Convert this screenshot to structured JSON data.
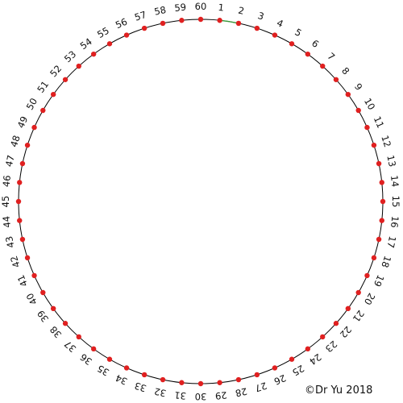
{
  "diagram": {
    "labels": [
      "60",
      "1",
      "2",
      "3",
      "4",
      "5",
      "6",
      "7",
      "8",
      "9",
      "10",
      "11",
      "12",
      "13",
      "14",
      "15",
      "16",
      "17",
      "18",
      "19",
      "20",
      "21",
      "22",
      "23",
      "24",
      "25",
      "26",
      "27",
      "28",
      "29",
      "30",
      "31",
      "32",
      "33",
      "34",
      "35",
      "36",
      "37",
      "38",
      "39",
      "40",
      "41",
      "42",
      "43",
      "44",
      "45",
      "46",
      "47",
      "48",
      "49",
      "50",
      "51",
      "52",
      "53",
      "54",
      "55",
      "56",
      "57",
      "58",
      "59"
    ],
    "circle_color": "#000000",
    "highlight_arc_color": "#3a9a3a",
    "dot_color": "#e02020"
  },
  "footer": {
    "copyright": "©Dr Yu 2018"
  }
}
